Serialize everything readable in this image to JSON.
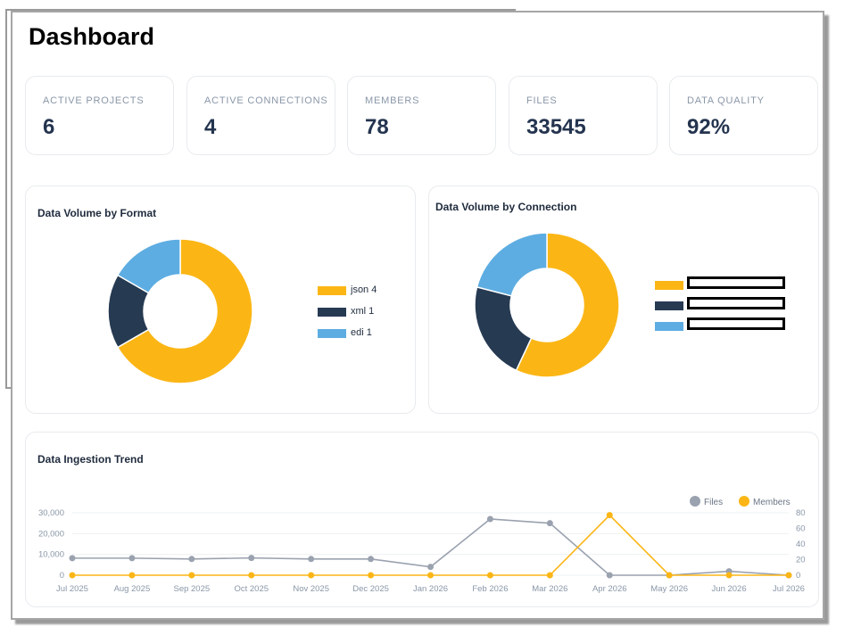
{
  "page": {
    "title": "Dashboard"
  },
  "stats": [
    {
      "label": "ACTIVE PROJECTS",
      "value": "6"
    },
    {
      "label": "ACTIVE CONNECTIONS",
      "value": "4"
    },
    {
      "label": "MEMBERS",
      "value": "78"
    },
    {
      "label": "FILES",
      "value": "33545"
    },
    {
      "label": "DATA QUALITY",
      "value": "92%"
    }
  ],
  "colors": {
    "yellow": "#fbb616",
    "navy": "#263a52",
    "blue": "#5dade2",
    "gray": "#9aa2af"
  },
  "format_chart": {
    "title": "Data Volume by Format",
    "legend": [
      {
        "label": "json  4",
        "color": "#fbb616"
      },
      {
        "label": "xml  1",
        "color": "#263a52"
      },
      {
        "label": "edi  1",
        "color": "#5dade2"
      }
    ]
  },
  "connection_chart": {
    "title": "Data Volume by Connection",
    "legend": [
      {
        "color": "#fbb616"
      },
      {
        "color": "#263a52"
      },
      {
        "color": "#5dade2"
      }
    ]
  },
  "trend_chart": {
    "title": "Data Ingestion Trend"
  },
  "chart_data": [
    {
      "type": "pie",
      "title": "Data Volume by Format",
      "categories": [
        "json",
        "xml",
        "edi"
      ],
      "values": [
        4,
        1,
        1
      ],
      "colors": [
        "#fbb616",
        "#263a52",
        "#5dade2"
      ],
      "donut": true,
      "legend": "right"
    },
    {
      "type": "pie",
      "title": "Data Volume by Connection",
      "categories": [
        "",
        "",
        ""
      ],
      "values": [
        57,
        22,
        21
      ],
      "colors": [
        "#fbb616",
        "#263a52",
        "#5dade2"
      ],
      "donut": true,
      "legend": "right"
    },
    {
      "type": "line",
      "title": "Data Ingestion Trend",
      "categories": [
        "Jul 2025",
        "Aug 2025",
        "Sep 2025",
        "Oct 2025",
        "Nov 2025",
        "Dec 2025",
        "Jan 2026",
        "Feb 2026",
        "Mar 2026",
        "Apr 2026",
        "May 2026",
        "Jun 2026",
        "Jul 2026"
      ],
      "series": [
        {
          "name": "Files",
          "axis": "left",
          "color": "#9aa2af",
          "values": [
            8200,
            8200,
            7800,
            8300,
            7800,
            7800,
            4000,
            27000,
            25000,
            0,
            0,
            1900,
            0
          ]
        },
        {
          "name": "Members",
          "axis": "right",
          "color": "#fbb616",
          "values": [
            0,
            0,
            0,
            0,
            0,
            0,
            0,
            0,
            0,
            77,
            0,
            0,
            0
          ]
        }
      ],
      "ylim_left": [
        0,
        30000
      ],
      "yticks_left": [
        "0",
        "10,000",
        "20,000",
        "30,000"
      ],
      "ylim_right": [
        0,
        80
      ],
      "yticks_right": [
        "0",
        "20",
        "40",
        "60",
        "80"
      ],
      "legend": "top-right",
      "grid": true
    }
  ]
}
